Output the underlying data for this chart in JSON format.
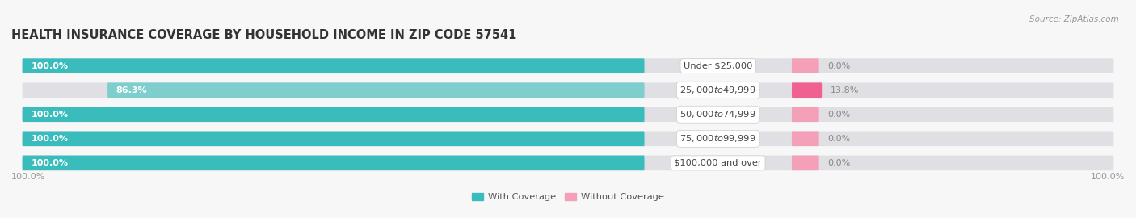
{
  "title": "HEALTH INSURANCE COVERAGE BY HOUSEHOLD INCOME IN ZIP CODE 57541",
  "source": "Source: ZipAtlas.com",
  "categories": [
    "Under $25,000",
    "$25,000 to $49,999",
    "$50,000 to $74,999",
    "$75,000 to $99,999",
    "$100,000 and over"
  ],
  "with_coverage": [
    100.0,
    86.3,
    100.0,
    100.0,
    100.0
  ],
  "without_coverage": [
    0.0,
    13.8,
    0.0,
    0.0,
    0.0
  ],
  "color_with_dark": "#3BBCBC",
  "color_with_light": "#7ECECE",
  "color_without_dark": "#F06090",
  "color_without_light": "#F4A0B8",
  "color_bg_bar": "#E0E0E4",
  "background": "#F7F7F7",
  "legend_with": "With Coverage",
  "legend_without": "Without Coverage",
  "bottom_left_label": "100.0%",
  "bottom_right_label": "100.0%",
  "title_fontsize": 10.5,
  "label_fontsize": 8.2,
  "pct_fontsize": 8.0,
  "source_fontsize": 7.5
}
